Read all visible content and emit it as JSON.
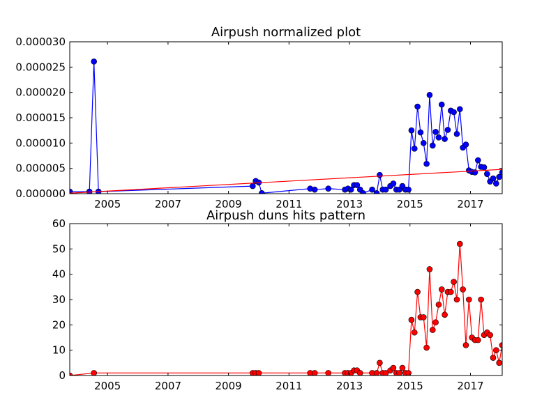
{
  "colors": {
    "top_series": "#0000ff",
    "top_trend": "#ff0000",
    "bottom_series": "#ff0000"
  },
  "chart_data": [
    {
      "type": "line",
      "title": "Airpush normalized plot",
      "xlabel": "",
      "ylabel": "",
      "grid": false,
      "xlim": [
        2003.75,
        2018.05
      ],
      "ylim": [
        0,
        3e-05
      ],
      "x_ticks": [
        2005,
        2007,
        2009,
        2011,
        2013,
        2015,
        2017
      ],
      "x_tick_labels": [
        "2005",
        "2007",
        "2009",
        "2011",
        "2013",
        "2015",
        "2017"
      ],
      "y_ticks": [
        0,
        5e-06,
        1e-05,
        1.5e-05,
        2e-05,
        2.5e-05,
        3e-05
      ],
      "y_tick_labels": [
        "0.000000",
        "0.000005",
        "0.000010",
        "0.000015",
        "0.000020",
        "0.000025",
        "0.000030"
      ],
      "series": [
        {
          "style": "line-with-markers",
          "x": [
            2003.75,
            2004.4,
            2004.55,
            2004.7,
            2009.8,
            2009.9,
            2010.0,
            2010.1,
            2011.7,
            2011.85,
            2012.3,
            2012.85,
            2012.95,
            2013.05,
            2013.15,
            2013.25,
            2013.35,
            2013.45,
            2013.75,
            2013.9,
            2014.0,
            2014.1,
            2014.2,
            2014.35,
            2014.45,
            2014.55,
            2014.65,
            2014.75,
            2014.85,
            2014.95,
            2015.05,
            2015.15,
            2015.25,
            2015.35,
            2015.45,
            2015.55,
            2015.65,
            2015.75,
            2015.85,
            2015.95,
            2016.05,
            2016.15,
            2016.25,
            2016.35,
            2016.45,
            2016.55,
            2016.65,
            2016.75,
            2016.85,
            2016.95,
            2017.05,
            2017.15,
            2017.25,
            2017.35,
            2017.45,
            2017.55,
            2017.65,
            2017.75,
            2017.85,
            2017.95,
            2018.05
          ],
          "y": [
            4e-07,
            4e-07,
            2.61e-05,
            4e-07,
            1.5e-06,
            2.5e-06,
            2.2e-06,
            1e-07,
            1e-06,
            8e-07,
            1e-06,
            8e-07,
            1e-06,
            8e-07,
            1.7e-06,
            1.7e-06,
            8e-07,
            1e-07,
            8e-07,
            1e-07,
            3.7e-06,
            8e-07,
            8e-07,
            1.5e-06,
            2e-06,
            8e-07,
            8e-07,
            1.5e-06,
            8e-07,
            8e-07,
            1.25e-05,
            8.9e-06,
            1.72e-05,
            1.21e-05,
            1e-05,
            5.9e-06,
            1.95e-05,
            9.5e-06,
            1.22e-05,
            1.11e-05,
            1.76e-05,
            1.08e-05,
            1.26e-05,
            1.64e-05,
            1.61e-05,
            1.18e-05,
            1.67e-05,
            9.1e-06,
            9.7e-06,
            4.6e-06,
            4.3e-06,
            4.2e-06,
            6.6e-06,
            5.3e-06,
            5.2e-06,
            3.9e-06,
            2.4e-06,
            3e-06,
            2e-06,
            3.3e-06,
            4.2e-06
          ]
        },
        {
          "style": "trend-line",
          "x": [
            2003.75,
            2018.05
          ],
          "y": [
            1e-07,
            4.8e-06
          ]
        }
      ]
    },
    {
      "type": "line",
      "title": "Airpush duns hits pattern",
      "xlabel": "",
      "ylabel": "",
      "grid": false,
      "xlim": [
        2003.75,
        2018.05
      ],
      "ylim": [
        0,
        60
      ],
      "x_ticks": [
        2005,
        2007,
        2009,
        2011,
        2013,
        2015,
        2017
      ],
      "x_tick_labels": [
        "2005",
        "2007",
        "2009",
        "2011",
        "2013",
        "2015",
        "2017"
      ],
      "y_ticks": [
        0,
        10,
        20,
        30,
        40,
        50,
        60
      ],
      "y_tick_labels": [
        "0",
        "10",
        "20",
        "30",
        "40",
        "50",
        "60"
      ],
      "series": [
        {
          "style": "line-with-markers",
          "x": [
            2003.75,
            2004.55,
            2009.8,
            2009.9,
            2010.0,
            2011.7,
            2011.85,
            2012.3,
            2012.85,
            2012.95,
            2013.05,
            2013.15,
            2013.25,
            2013.35,
            2013.75,
            2013.9,
            2014.0,
            2014.1,
            2014.2,
            2014.35,
            2014.45,
            2014.55,
            2014.65,
            2014.75,
            2014.85,
            2014.95,
            2015.05,
            2015.15,
            2015.25,
            2015.35,
            2015.45,
            2015.55,
            2015.65,
            2015.75,
            2015.85,
            2015.95,
            2016.05,
            2016.15,
            2016.25,
            2016.35,
            2016.45,
            2016.55,
            2016.65,
            2016.75,
            2016.85,
            2016.95,
            2017.05,
            2017.15,
            2017.25,
            2017.35,
            2017.45,
            2017.55,
            2017.65,
            2017.75,
            2017.85,
            2017.95,
            2018.05
          ],
          "y": [
            0,
            1,
            1,
            1,
            1,
            1,
            1,
            1,
            1,
            1,
            1,
            2,
            2,
            1,
            1,
            1,
            5,
            1,
            1,
            2,
            3,
            1,
            1,
            3,
            1,
            1,
            22,
            17,
            33,
            23,
            23,
            11,
            42,
            18,
            21,
            28,
            34,
            24,
            33,
            33,
            37,
            30,
            52,
            34,
            12,
            30,
            15,
            14,
            14,
            30,
            16,
            17,
            16,
            7,
            10,
            5,
            12
          ]
        }
      ]
    }
  ]
}
